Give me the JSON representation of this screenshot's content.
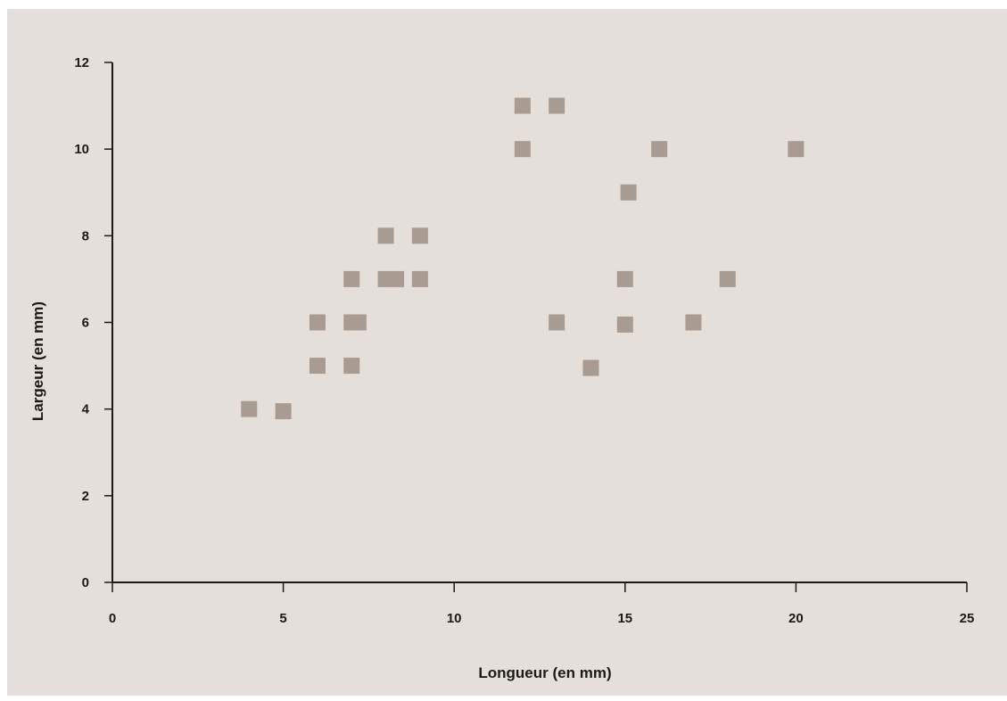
{
  "chart_data": {
    "type": "scatter",
    "title": "",
    "xlabel": "Longueur (en mm)",
    "ylabel": "Largeur (en mm)",
    "xlim": [
      0,
      25
    ],
    "ylim": [
      0,
      12
    ],
    "xticks": [
      0,
      5,
      10,
      15,
      20,
      25
    ],
    "yticks": [
      0,
      2,
      4,
      6,
      8,
      10,
      12
    ],
    "grid": false,
    "marker": "square",
    "marker_color": "#a99b91",
    "background_color": "#e4dfdb",
    "series": [
      {
        "points": [
          {
            "x": 4,
            "y": 4
          },
          {
            "x": 5,
            "y": 3.95
          },
          {
            "x": 6,
            "y": 6
          },
          {
            "x": 6,
            "y": 5
          },
          {
            "x": 7,
            "y": 7
          },
          {
            "x": 7,
            "y": 6
          },
          {
            "x": 7.2,
            "y": 6
          },
          {
            "x": 7,
            "y": 5
          },
          {
            "x": 8,
            "y": 8
          },
          {
            "x": 8,
            "y": 7
          },
          {
            "x": 8.3,
            "y": 7
          },
          {
            "x": 9,
            "y": 8
          },
          {
            "x": 9,
            "y": 7
          },
          {
            "x": 12,
            "y": 11
          },
          {
            "x": 12,
            "y": 10
          },
          {
            "x": 13,
            "y": 11
          },
          {
            "x": 13,
            "y": 6
          },
          {
            "x": 14,
            "y": 4.95
          },
          {
            "x": 15,
            "y": 7
          },
          {
            "x": 15,
            "y": 5.95
          },
          {
            "x": 15.1,
            "y": 9
          },
          {
            "x": 16,
            "y": 10
          },
          {
            "x": 17,
            "y": 6
          },
          {
            "x": 18,
            "y": 7
          },
          {
            "x": 20,
            "y": 10
          }
        ]
      }
    ]
  }
}
